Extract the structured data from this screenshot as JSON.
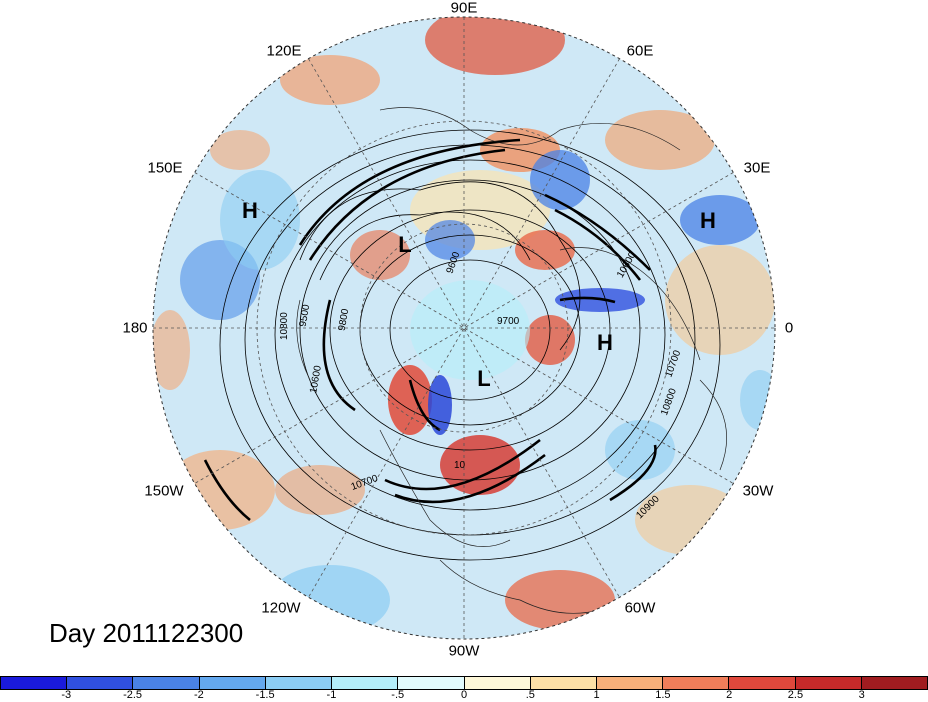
{
  "title": "Day 2011122300",
  "longitude_labels": [
    "90E",
    "60E",
    "30E",
    "0",
    "30W",
    "60W",
    "90W",
    "120W",
    "150W",
    "180",
    "150E",
    "120E"
  ],
  "pressure_centers": [
    {
      "label": "H",
      "note": "over North Pacific"
    },
    {
      "label": "L",
      "note": "over Siberia"
    },
    {
      "label": "H",
      "note": "over Middle East / Africa"
    },
    {
      "label": "H",
      "note": "over North Atlantic"
    },
    {
      "label": "L",
      "note": "over Arctic Canada"
    }
  ],
  "contour_labels": [
    "10800",
    "9600",
    "9800",
    "9700",
    "10700",
    "10800",
    "10900",
    "10600",
    "10700",
    "10600",
    "9500",
    "10"
  ],
  "colorbar": {
    "ticks": [
      "-3",
      "-2.5",
      "-2",
      "-1.5",
      "-1",
      "-.5",
      "0",
      ".5",
      "1",
      "1.5",
      "2",
      "2.5",
      "3"
    ],
    "colors": [
      "#1a1adc",
      "#3050e0",
      "#4a82e6",
      "#64a8ee",
      "#8ccdf4",
      "#b4eefa",
      "#e2fbfd",
      "#fdf7d8",
      "#fde0a6",
      "#f7b07a",
      "#f07e5a",
      "#e0483c",
      "#c62a2a",
      "#a01c20"
    ]
  }
}
